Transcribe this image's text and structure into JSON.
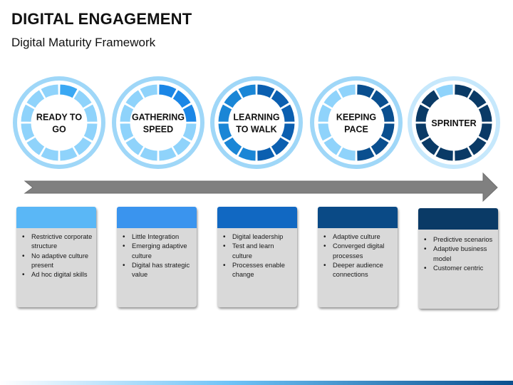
{
  "title": "DIGITAL ENGAGEMENT",
  "subtitle": "Digital Maturity Framework",
  "colors": {
    "light": "#8fd3fb",
    "mid": "#1a86d6",
    "dark": "#0b4f8e",
    "navy": "#0a3a66",
    "ring_border": "#9fd7f8",
    "arrow": "#808080",
    "card_heads": [
      "#5ab7f6",
      "#3a94ee",
      "#1168c2",
      "#0a4a86",
      "#0a3a66"
    ]
  },
  "stages": [
    {
      "label_lines": [
        "READY TO",
        "GO"
      ],
      "filled_segments": 1,
      "points": [
        "Restrictive corporate structure",
        "No adaptive culture present",
        "Ad hoc digital skills"
      ]
    },
    {
      "label_lines": [
        "GATHERING",
        "SPEED"
      ],
      "filled_segments": 3,
      "points": [
        "Little Integration",
        "Emerging adaptive culture",
        "Digital has strategic value"
      ]
    },
    {
      "label_lines": [
        "LEARNING",
        "TO WALK"
      ],
      "filled_segments": 6,
      "points": [
        "Digital leadership",
        "Test and learn culture",
        "Processes enable change"
      ]
    },
    {
      "label_lines": [
        "KEEPING",
        "PACE"
      ],
      "filled_segments": 6,
      "points": [
        "Adaptive culture",
        "Converged digital processes",
        "Deeper audience connections"
      ]
    },
    {
      "label_lines": [
        "SPRINTER"
      ],
      "filled_segments": 11,
      "points": [
        "Predictive scenarios",
        "Adaptive business model",
        "Customer centric"
      ]
    }
  ]
}
